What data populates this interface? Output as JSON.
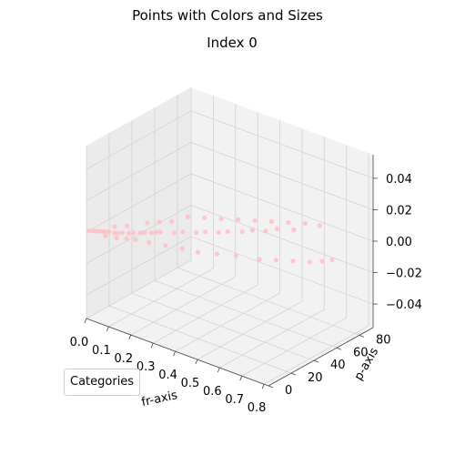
{
  "chart_data": {
    "type": "scatter",
    "projection": "3d",
    "suptitle": "Points with Colors and Sizes",
    "title": "Index 0",
    "xlabel": "fr-axis",
    "ylabel": "p-axis",
    "zlabel": "",
    "xlim": [
      0.0,
      0.82
    ],
    "ylim": [
      0,
      92
    ],
    "zlim": [
      -0.055,
      0.055
    ],
    "x_ticks": [
      "0.0",
      "0.1",
      "0.2",
      "0.3",
      "0.4",
      "0.5",
      "0.6",
      "0.7",
      "0.8"
    ],
    "y_ticks": [
      "0",
      "20",
      "40",
      "60",
      "80"
    ],
    "z_ticks": [
      "0.04",
      "0.02",
      "0.00",
      "−0.02",
      "−0.04"
    ],
    "grid": true,
    "legend": {
      "title": "Categories",
      "location": "lower-left"
    },
    "point_color": "#ffc0cb",
    "series": [
      {
        "x": [
          0.0,
          0.01,
          0.02,
          0.03,
          0.04,
          0.05,
          0.06,
          0.07,
          0.08,
          0.09,
          0.1,
          0.11,
          0.12,
          0.13,
          0.14,
          0.15,
          0.16,
          0.17,
          0.18,
          0.19,
          0.2,
          0.22,
          0.24,
          0.26,
          0.28,
          0.3,
          0.32,
          0.34,
          0.36,
          0.38,
          0.4,
          0.42,
          0.44,
          0.46,
          0.48,
          0.5,
          0.52,
          0.55,
          0.6,
          0.65,
          0.7,
          0.75,
          0.78,
          0.8,
          0.05,
          0.08,
          0.12,
          0.15,
          0.18,
          0.2,
          0.25,
          0.3,
          0.35,
          0.4,
          0.45,
          0.5,
          0.55,
          0.6
        ],
        "y": [
          2,
          3,
          4,
          5,
          6,
          7,
          8,
          3,
          9,
          10,
          12,
          5,
          14,
          16,
          8,
          18,
          20,
          10,
          22,
          24,
          26,
          12,
          30,
          34,
          15,
          38,
          42,
          18,
          46,
          50,
          20,
          55,
          60,
          25,
          64,
          70,
          30,
          75,
          35,
          40,
          45,
          50,
          55,
          60,
          15,
          20,
          30,
          35,
          40,
          50,
          55,
          60,
          65,
          70,
          75,
          80,
          85,
          88
        ],
        "z": [
          0,
          0,
          0,
          0,
          0,
          0,
          0,
          0,
          0,
          0,
          0,
          0,
          0,
          0,
          0,
          0,
          0,
          0,
          0,
          0,
          0,
          0,
          0,
          0,
          0,
          0,
          0,
          0,
          0,
          0,
          0,
          0,
          0,
          0,
          0,
          0,
          0,
          0,
          0,
          0,
          0,
          0,
          0,
          0,
          0,
          0,
          0,
          0,
          0,
          0,
          0,
          0,
          0,
          0,
          0,
          0,
          0,
          0
        ]
      }
    ]
  }
}
